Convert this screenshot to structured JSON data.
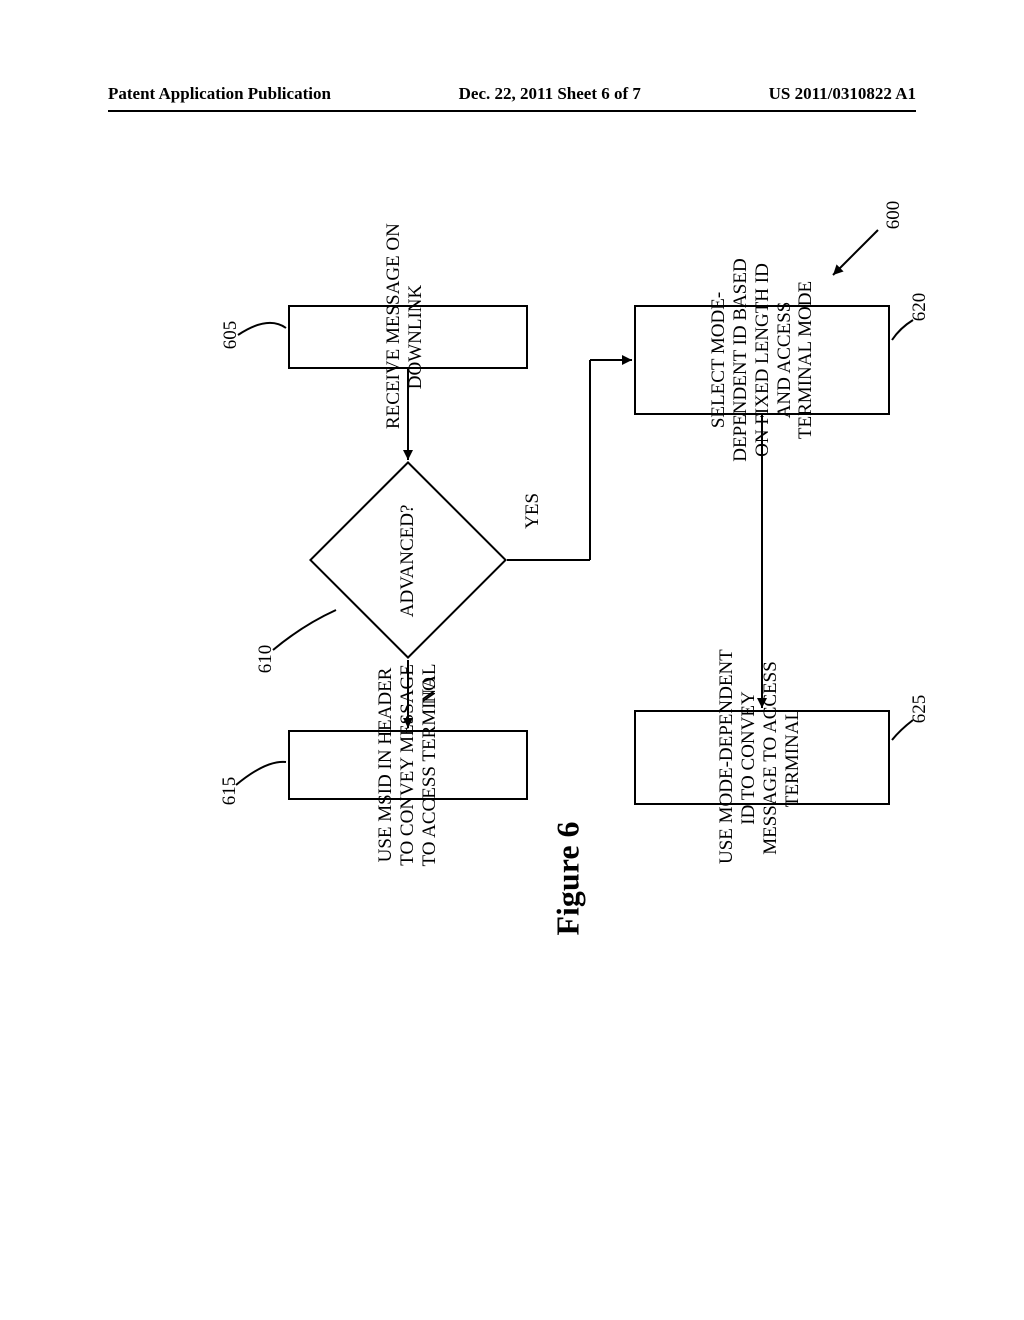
{
  "header": {
    "left": "Patent Application Publication",
    "center": "Dec. 22, 2011   Sheet 6 of 7",
    "right": "US 2011/0310822 A1"
  },
  "flowchart": {
    "type": "flowchart",
    "ref_600": "600",
    "nodes": {
      "n605": {
        "ref": "605",
        "text": "RECEIVE MESSAGE ON\nDOWNLINK"
      },
      "n610": {
        "ref": "610",
        "text": "ADVANCED?"
      },
      "n615": {
        "ref": "615",
        "text": "USE MSID IN HEADER\nTO CONVEY MESSAGE\nTO ACCESS TERMINAL"
      },
      "n620": {
        "ref": "620",
        "text": "SELECT MODE-\nDEPENDENT ID BASED\nON FIXED LENGTH ID\nAND ACCESS\nTERMINAL MODE"
      },
      "n625": {
        "ref": "625",
        "text": "USE MODE-DEPENDENT\nID TO CONVEY\nMESSAGE TO ACCESS\nTERMINAL"
      }
    },
    "edges": {
      "yes": "YES",
      "no": "NO"
    },
    "caption": "Figure 6",
    "colors": {
      "stroke": "#000000",
      "fill": "#ffffff",
      "text": "#000000"
    },
    "line_width": 2
  }
}
